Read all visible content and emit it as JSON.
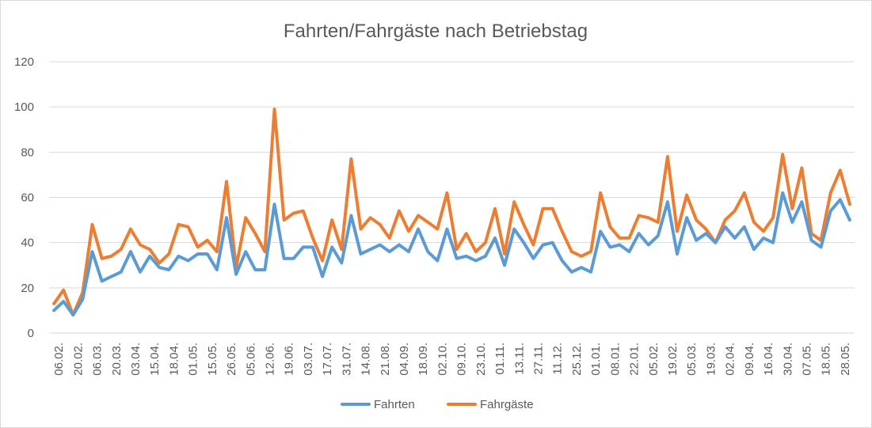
{
  "chart_data": {
    "type": "line",
    "title": "Fahrten/Fahrgäste nach Betriebstag",
    "xlabel": "",
    "ylabel": "",
    "ylim": [
      0,
      120
    ],
    "yticks": [
      0,
      20,
      40,
      60,
      80,
      100,
      120
    ],
    "grid": true,
    "legend_position": "bottom",
    "x_tick_labels": [
      "06.02.",
      "20.02.",
      "06.03.",
      "20.03.",
      "03.04.",
      "15.04.",
      "18.04.",
      "01.05.",
      "15.05.",
      "26.05.",
      "05.06.",
      "12.06.",
      "19.06.",
      "03.07.",
      "17.07.",
      "31.07.",
      "14.08.",
      "21.08.",
      "04.09.",
      "18.09.",
      "02.10.",
      "09.10.",
      "23.10.",
      "01.11.",
      "13.11.",
      "27.11.",
      "11.12.",
      "25.12.",
      "01.01.",
      "08.01.",
      "22.01.",
      "05.02.",
      "19.02.",
      "05.03.",
      "19.03.",
      "02.04.",
      "09.04.",
      "16.04.",
      "30.04.",
      "07.05.",
      "18.05.",
      "28.05."
    ],
    "series": [
      {
        "name": "Fahrten",
        "color": "#5b9bd5",
        "values": [
          10,
          14,
          8,
          15,
          36,
          23,
          25,
          27,
          36,
          27,
          34,
          29,
          28,
          34,
          32,
          35,
          35,
          28,
          51,
          26,
          36,
          28,
          28,
          57,
          33,
          33,
          38,
          38,
          25,
          38,
          31,
          52,
          35,
          37,
          39,
          36,
          39,
          36,
          46,
          36,
          32,
          46,
          33,
          34,
          32,
          34,
          42,
          30,
          46,
          40,
          33,
          39,
          40,
          32,
          27,
          29,
          27,
          45,
          38,
          39,
          36,
          44,
          39,
          43,
          58,
          35,
          51,
          41,
          44,
          40,
          47,
          42,
          47,
          37,
          42,
          40,
          62,
          49,
          58,
          41,
          38,
          54,
          59,
          50
        ]
      },
      {
        "name": "Fahrgäste",
        "color": "#ed7d31",
        "values": [
          13,
          19,
          8,
          18,
          48,
          33,
          34,
          37,
          46,
          39,
          37,
          31,
          35,
          48,
          47,
          38,
          41,
          36,
          67,
          29,
          51,
          44,
          36,
          99,
          50,
          53,
          54,
          42,
          32,
          50,
          37,
          77,
          46,
          51,
          48,
          42,
          54,
          45,
          52,
          49,
          46,
          62,
          37,
          44,
          36,
          40,
          55,
          35,
          58,
          48,
          39,
          55,
          55,
          45,
          36,
          34,
          36,
          62,
          47,
          42,
          42,
          52,
          51,
          49,
          78,
          45,
          61,
          50,
          46,
          40,
          50,
          54,
          62,
          49,
          45,
          51,
          79,
          55,
          73,
          44,
          41,
          62,
          72,
          57
        ]
      }
    ]
  }
}
